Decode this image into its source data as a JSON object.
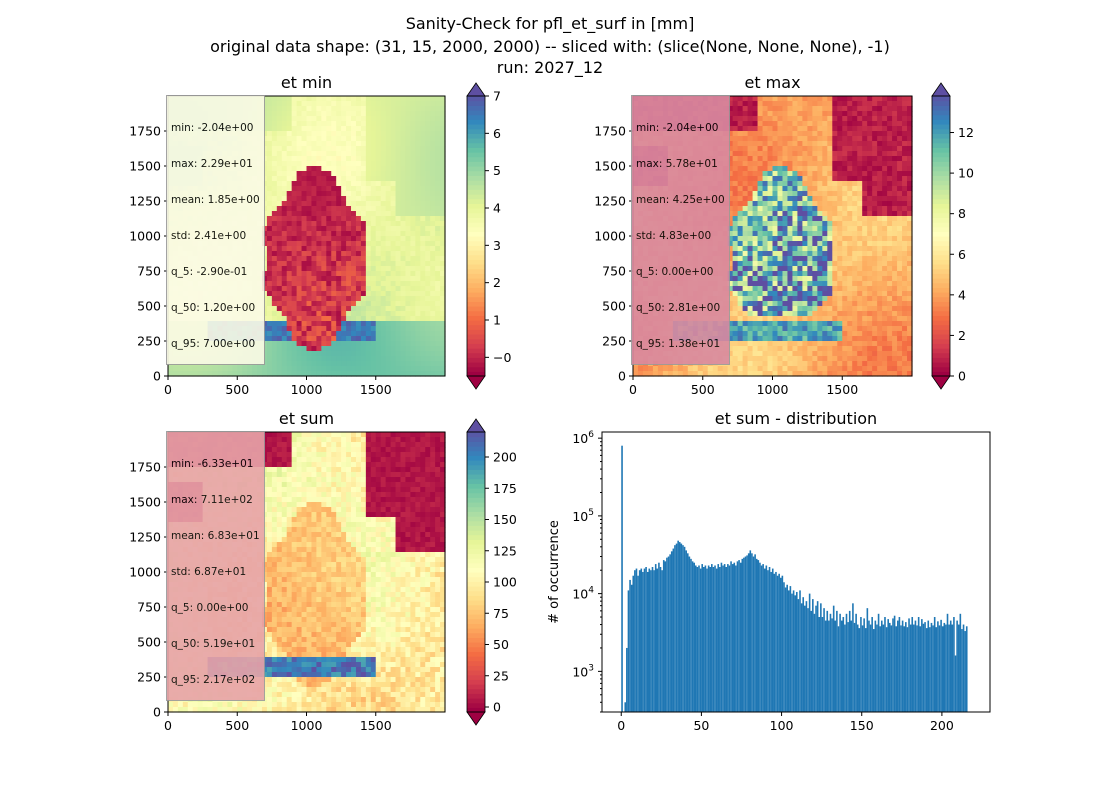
{
  "figure": {
    "suptitle_lines": [
      "Sanity-Check for pfl_et_surf in [mm]",
      "original data shape: (31, 15, 2000, 2000) -- sliced with: (slice(None, None, None), -1)",
      "run: 2027_12"
    ]
  },
  "chart_data": [
    {
      "type": "heatmap",
      "title": "et min",
      "colormap": "Spectral",
      "x_ticks": [
        0,
        500,
        1000,
        1500
      ],
      "y_ticks": [
        0,
        250,
        500,
        750,
        1000,
        1250,
        1500,
        1750
      ],
      "xlim": [
        0,
        2000
      ],
      "ylim": [
        0,
        2000
      ],
      "colorbar": {
        "vmin": -0.5,
        "vmax": 7,
        "ticks": [
          0,
          1,
          2,
          3,
          4,
          5,
          6,
          7
        ],
        "tick_labels": [
          "−0",
          "1",
          "2",
          "3",
          "4",
          "5",
          "6",
          "7"
        ],
        "extend": "both"
      },
      "stats": [
        "min: -2.04e+00",
        "max: 2.29e+01",
        "mean: 1.85e+00",
        "std: 2.41e+00",
        "q_5: -2.90e-01",
        "q_50: 1.20e+00",
        "q_95: 7.00e+00"
      ],
      "stats_box_color": "#fbfbe6"
    },
    {
      "type": "heatmap",
      "title": "et max",
      "colormap": "Spectral",
      "x_ticks": [
        0,
        500,
        1000,
        1500
      ],
      "y_ticks": [
        0,
        250,
        500,
        750,
        1000,
        1250,
        1500,
        1750
      ],
      "xlim": [
        0,
        2000
      ],
      "ylim": [
        0,
        2000
      ],
      "colorbar": {
        "vmin": 0,
        "vmax": 13.8,
        "ticks": [
          0,
          2,
          4,
          6,
          8,
          10,
          12
        ],
        "tick_labels": [
          "0",
          "2",
          "4",
          "6",
          "8",
          "10",
          "12"
        ],
        "extend": "both"
      },
      "stats": [
        "min: -2.04e+00",
        "max: 5.78e+01",
        "mean: 4.25e+00",
        "std: 4.83e+00",
        "q_5: 0.00e+00",
        "q_50: 2.81e+00",
        "q_95: 1.38e+01"
      ],
      "stats_box_color": "#d98aa0"
    },
    {
      "type": "heatmap",
      "title": "et sum",
      "colormap": "Spectral",
      "x_ticks": [
        0,
        500,
        1000,
        1500
      ],
      "y_ticks": [
        0,
        250,
        500,
        750,
        1000,
        1250,
        1500,
        1750
      ],
      "xlim": [
        0,
        2000
      ],
      "ylim": [
        0,
        2000
      ],
      "colorbar": {
        "vmin": -4,
        "vmax": 220,
        "ticks": [
          0,
          25,
          50,
          75,
          100,
          125,
          150,
          175,
          200
        ],
        "tick_labels": [
          "0",
          "25",
          "50",
          "75",
          "100",
          "125",
          "150",
          "175",
          "200"
        ],
        "extend": "both"
      },
      "stats": [
        "min: -6.33e+01",
        "max: 7.11e+02",
        "mean: 6.83e+01",
        "std: 6.87e+01",
        "q_5: 0.00e+00",
        "q_50: 5.19e+01",
        "q_95: 2.17e+02"
      ],
      "stats_box_color": "#e7a3a8"
    },
    {
      "type": "bar",
      "title": "et sum - distribution",
      "ylabel": "# of occurrence",
      "yscale": "log",
      "ylim": [
        300,
        1200000
      ],
      "xlim": [
        -12,
        230
      ],
      "x_ticks": [
        0,
        50,
        100,
        150,
        200
      ],
      "y_ticks": [
        {
          "value": 1000,
          "base": "10",
          "exp": "3"
        },
        {
          "value": 10000,
          "base": "10",
          "exp": "4"
        },
        {
          "value": 100000,
          "base": "10",
          "exp": "5"
        },
        {
          "value": 1000000,
          "base": "10",
          "exp": "6"
        }
      ],
      "bar_color": "#1f77b4",
      "bins": [
        [
          0,
          800000
        ],
        [
          2,
          400
        ],
        [
          3,
          2000
        ],
        [
          4,
          11000
        ],
        [
          5,
          15000
        ],
        [
          6,
          13000
        ],
        [
          7,
          17000
        ],
        [
          8,
          20000
        ],
        [
          9,
          21000
        ],
        [
          10,
          17000
        ],
        [
          11,
          20000
        ],
        [
          12,
          21000
        ],
        [
          13,
          19000
        ],
        [
          14,
          21000
        ],
        [
          15,
          22000
        ],
        [
          16,
          19000
        ],
        [
          17,
          21000
        ],
        [
          18,
          20000
        ],
        [
          19,
          22000
        ],
        [
          20,
          20000
        ],
        [
          21,
          24000
        ],
        [
          22,
          21000
        ],
        [
          23,
          25000
        ],
        [
          24,
          22000
        ],
        [
          25,
          20000
        ],
        [
          26,
          27000
        ],
        [
          27,
          26000
        ],
        [
          28,
          29000
        ],
        [
          29,
          30000
        ],
        [
          30,
          32000
        ],
        [
          31,
          35000
        ],
        [
          32,
          38000
        ],
        [
          33,
          42000
        ],
        [
          34,
          44000
        ],
        [
          35,
          48000
        ],
        [
          36,
          46000
        ],
        [
          37,
          44000
        ],
        [
          38,
          42000
        ],
        [
          39,
          40000
        ],
        [
          40,
          36000
        ],
        [
          41,
          33000
        ],
        [
          42,
          30000
        ],
        [
          43,
          28000
        ],
        [
          44,
          26000
        ],
        [
          45,
          25000
        ],
        [
          46,
          23000
        ],
        [
          47,
          22000
        ],
        [
          48,
          23000
        ],
        [
          49,
          21000
        ],
        [
          50,
          24000
        ],
        [
          51,
          22000
        ],
        [
          52,
          23000
        ],
        [
          53,
          21000
        ],
        [
          54,
          23000
        ],
        [
          55,
          22000
        ],
        [
          56,
          24000
        ],
        [
          57,
          22000
        ],
        [
          58,
          23000
        ],
        [
          59,
          21000
        ],
        [
          60,
          24000
        ],
        [
          61,
          22000
        ],
        [
          62,
          25000
        ],
        [
          63,
          23000
        ],
        [
          64,
          24000
        ],
        [
          65,
          22000
        ],
        [
          66,
          24000
        ],
        [
          67,
          23000
        ],
        [
          68,
          26000
        ],
        [
          69,
          24000
        ],
        [
          70,
          25000
        ],
        [
          71,
          23000
        ],
        [
          72,
          26000
        ],
        [
          73,
          27000
        ],
        [
          74,
          25000
        ],
        [
          75,
          28000
        ],
        [
          76,
          29000
        ],
        [
          77,
          30000
        ],
        [
          78,
          31000
        ],
        [
          79,
          33000
        ],
        [
          80,
          36000
        ],
        [
          81,
          33000
        ],
        [
          82,
          30000
        ],
        [
          83,
          32000
        ],
        [
          84,
          28000
        ],
        [
          85,
          27000
        ],
        [
          86,
          25000
        ],
        [
          87,
          23000
        ],
        [
          88,
          24000
        ],
        [
          89,
          21000
        ],
        [
          90,
          23000
        ],
        [
          91,
          20000
        ],
        [
          92,
          22000
        ],
        [
          93,
          19000
        ],
        [
          94,
          21000
        ],
        [
          95,
          18000
        ],
        [
          96,
          19000
        ],
        [
          97,
          17000
        ],
        [
          98,
          18000
        ],
        [
          99,
          16000
        ],
        [
          100,
          17000
        ],
        [
          101,
          14000
        ],
        [
          102,
          12000
        ],
        [
          103,
          13000
        ],
        [
          104,
          11000
        ],
        [
          105,
          12500
        ],
        [
          106,
          10000
        ],
        [
          107,
          11000
        ],
        [
          108,
          9500
        ],
        [
          109,
          10500
        ],
        [
          110,
          8500
        ],
        [
          111,
          11000
        ],
        [
          112,
          7500
        ],
        [
          113,
          9000
        ],
        [
          114,
          7000
        ],
        [
          115,
          8000
        ],
        [
          116,
          6500
        ],
        [
          117,
          10000
        ],
        [
          118,
          6000
        ],
        [
          119,
          8500
        ],
        [
          120,
          5500
        ],
        [
          121,
          7000
        ],
        [
          122,
          8000
        ],
        [
          123,
          5000
        ],
        [
          124,
          7500
        ],
        [
          125,
          5000
        ],
        [
          126,
          6500
        ],
        [
          127,
          4500
        ],
        [
          128,
          6000
        ],
        [
          129,
          4500
        ],
        [
          130,
          5500
        ],
        [
          131,
          4800
        ],
        [
          132,
          7000
        ],
        [
          133,
          4500
        ],
        [
          134,
          6000
        ],
        [
          135,
          3800
        ],
        [
          136,
          5500
        ],
        [
          137,
          4500
        ],
        [
          138,
          5000
        ],
        [
          139,
          4000
        ],
        [
          140,
          5500
        ],
        [
          141,
          4300
        ],
        [
          142,
          6000
        ],
        [
          143,
          4500
        ],
        [
          144,
          7500
        ],
        [
          145,
          4200
        ],
        [
          146,
          5500
        ],
        [
          147,
          4000
        ],
        [
          148,
          3600
        ],
        [
          149,
          5000
        ],
        [
          150,
          3900
        ],
        [
          151,
          4800
        ],
        [
          152,
          3600
        ],
        [
          153,
          6500
        ],
        [
          154,
          4500
        ],
        [
          155,
          4000
        ],
        [
          156,
          5000
        ],
        [
          157,
          3500
        ],
        [
          158,
          4500
        ],
        [
          159,
          4000
        ],
        [
          160,
          5500
        ],
        [
          161,
          3800
        ],
        [
          162,
          4500
        ],
        [
          163,
          4000
        ],
        [
          164,
          5000
        ],
        [
          165,
          3700
        ],
        [
          166,
          4700
        ],
        [
          167,
          4200
        ],
        [
          168,
          3900
        ],
        [
          169,
          4800
        ],
        [
          170,
          5200
        ],
        [
          171,
          3800
        ],
        [
          172,
          4500
        ],
        [
          173,
          5000
        ],
        [
          174,
          3900
        ],
        [
          175,
          4500
        ],
        [
          176,
          3800
        ],
        [
          177,
          4300
        ],
        [
          178,
          3700
        ],
        [
          179,
          4800
        ],
        [
          180,
          4000
        ],
        [
          181,
          5000
        ],
        [
          182,
          4000
        ],
        [
          183,
          4500
        ],
        [
          184,
          3900
        ],
        [
          185,
          5000
        ],
        [
          186,
          3800
        ],
        [
          187,
          4700
        ],
        [
          188,
          4100
        ],
        [
          189,
          4300
        ],
        [
          190,
          3600
        ],
        [
          191,
          4500
        ],
        [
          192,
          3700
        ],
        [
          193,
          4200
        ],
        [
          194,
          3900
        ],
        [
          195,
          5000
        ],
        [
          196,
          3700
        ],
        [
          197,
          4400
        ],
        [
          198,
          3900
        ],
        [
          199,
          4600
        ],
        [
          200,
          3800
        ],
        [
          201,
          4200
        ],
        [
          202,
          4000
        ],
        [
          203,
          5500
        ],
        [
          204,
          4000
        ],
        [
          205,
          4500
        ],
        [
          206,
          4000
        ],
        [
          207,
          5000
        ],
        [
          208,
          1600
        ],
        [
          209,
          4500
        ],
        [
          210,
          4000
        ],
        [
          211,
          5500
        ],
        [
          212,
          3500
        ],
        [
          213,
          4000
        ],
        [
          214,
          3300
        ],
        [
          215,
          3800
        ]
      ]
    }
  ]
}
